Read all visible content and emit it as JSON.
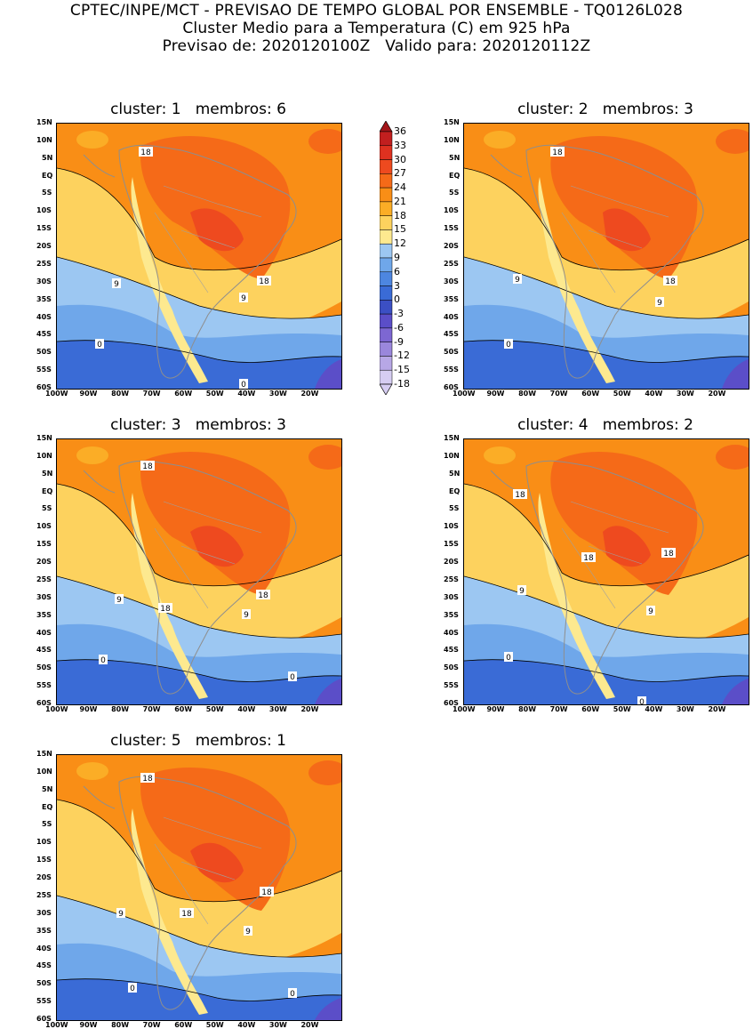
{
  "header": {
    "line1": "CPTEC/INPE/MCT - PREVISAO DE TEMPO GLOBAL POR ENSEMBLE - TQ0126L028",
    "line2": "Cluster Medio para a Temperatura (C) em 925 hPa",
    "line3": "Previsao de: 2020120100Z   Valido para: 2020120112Z"
  },
  "lat_ticks": [
    "15N",
    "10N",
    "5N",
    "EQ",
    "5S",
    "10S",
    "15S",
    "20S",
    "25S",
    "30S",
    "35S",
    "40S",
    "45S",
    "50S",
    "55S",
    "60S"
  ],
  "lon_ticks": [
    "100W",
    "90W",
    "80W",
    "70W",
    "60W",
    "50W",
    "40W",
    "30W",
    "20W"
  ],
  "colorbar": {
    "levels": [
      "36",
      "33",
      "30",
      "27",
      "24",
      "21",
      "18",
      "15",
      "12",
      "9",
      "6",
      "3",
      "0",
      "-3",
      "-6",
      "-9",
      "-12",
      "-15",
      "-18"
    ],
    "colors": [
      "#a4161a",
      "#c21f1f",
      "#de3120",
      "#ee4a1f",
      "#f56a18",
      "#f98e16",
      "#fbad26",
      "#fdd25e",
      "#fde98f",
      "#9cc7f2",
      "#6fa7ea",
      "#4d86e0",
      "#3a6bd6",
      "#3b4fc4",
      "#5b4ec8",
      "#7d67d2",
      "#9a87dc",
      "#b7a7e6",
      "#d6cdf2"
    ]
  },
  "panels": [
    {
      "title": "cluster: 1   membros: 6",
      "labels": [
        "18",
        "18",
        "9",
        "9",
        "0",
        "0"
      ]
    },
    {
      "title": "cluster: 2   membros: 3",
      "labels": [
        "18",
        "18",
        "9",
        "9",
        "0"
      ]
    },
    {
      "title": "cluster: 3   membros: 3",
      "labels": [
        "18",
        "18",
        "18",
        "9",
        "9",
        "0",
        "0"
      ]
    },
    {
      "title": "cluster: 4   membros: 2",
      "labels": [
        "18",
        "18",
        "18",
        "9",
        "9",
        "0",
        "0"
      ]
    },
    {
      "title": "cluster: 5   membros: 1",
      "labels": [
        "18",
        "18",
        "18",
        "9",
        "9",
        "0",
        "0"
      ]
    }
  ]
}
